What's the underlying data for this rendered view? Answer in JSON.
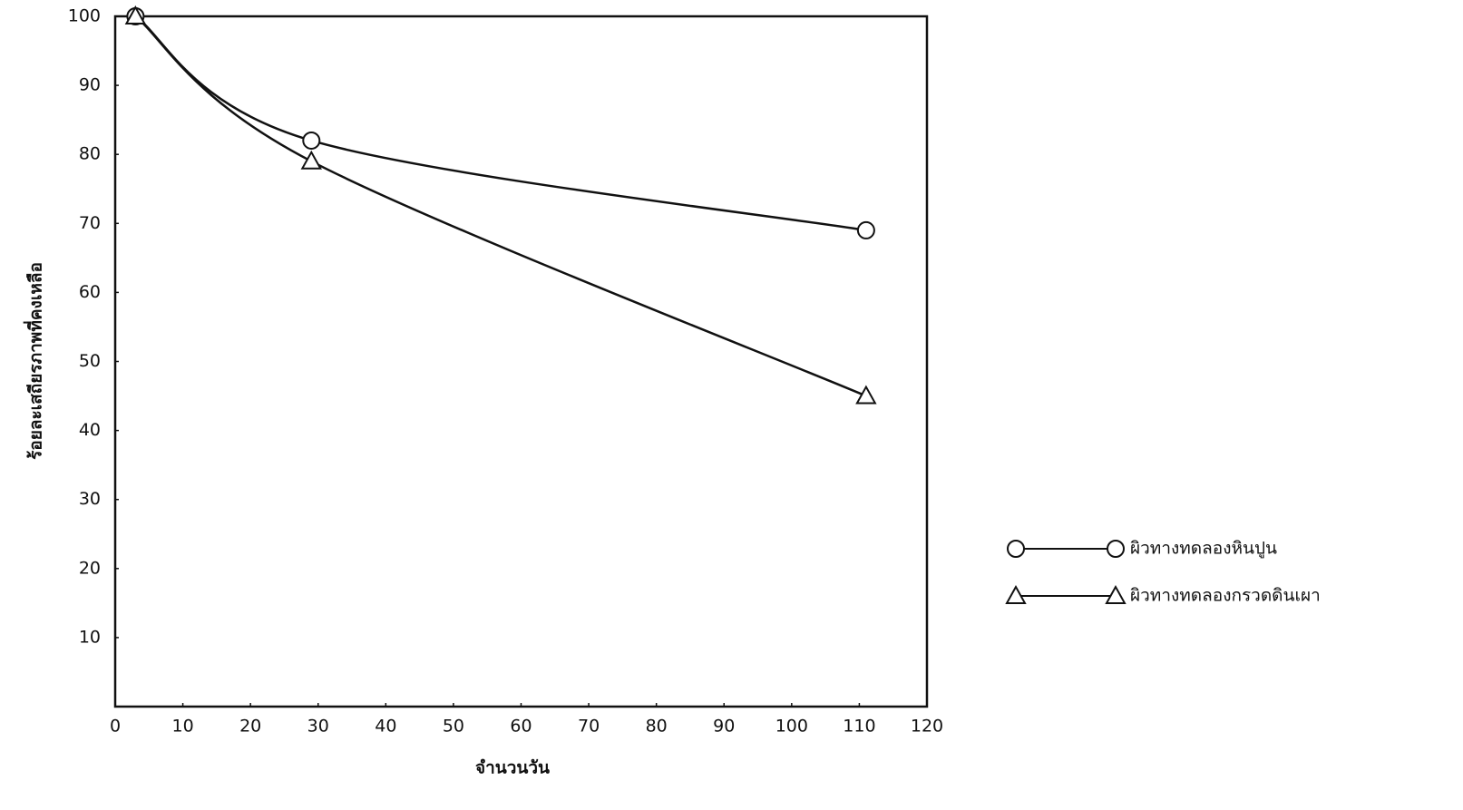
{
  "chart_data": {
    "type": "line",
    "x_label": "จำนวนวัน",
    "y_label": "ร้อยละเสถียรภาพที่คงเหลือ",
    "x": [
      3,
      29,
      111
    ],
    "series": [
      {
        "name": "ผิวทางทดลองหินปูน",
        "color": "#111111",
        "marker": "circle",
        "values": [
          100,
          82,
          69
        ]
      },
      {
        "name": "ผิวทางทดลองกรวดดินเผา",
        "color": "#111111",
        "marker": "triangle",
        "values": [
          100,
          79,
          45
        ]
      }
    ],
    "xlim": [
      0,
      120
    ],
    "xticks": [
      0,
      10,
      20,
      30,
      40,
      50,
      60,
      70,
      80,
      90,
      100,
      110,
      120
    ],
    "ylim": [
      0,
      100
    ],
    "yticks": [
      10,
      20,
      30,
      40,
      50,
      60,
      70,
      80,
      90,
      100
    ],
    "grid": false,
    "smooth": true,
    "legend": "right"
  }
}
